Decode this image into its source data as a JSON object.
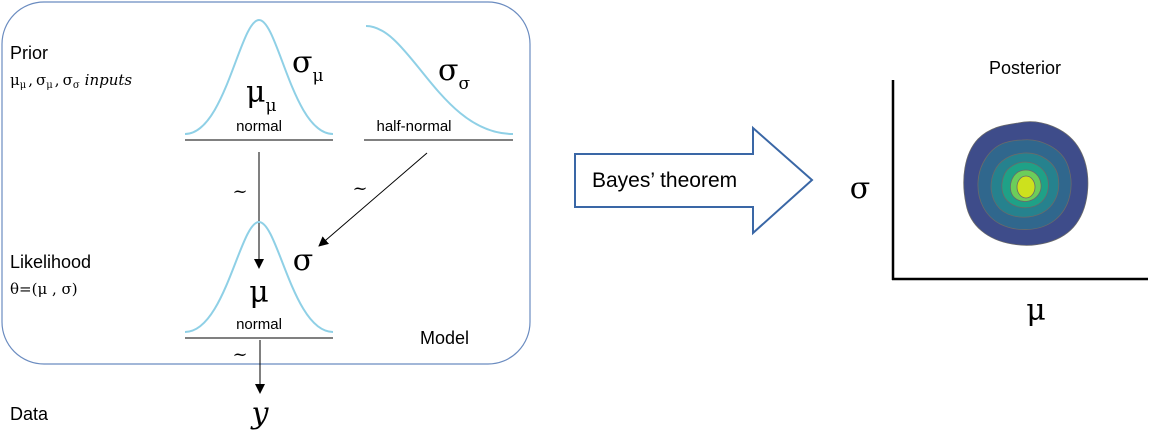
{
  "model": {
    "label": "Model",
    "prior": {
      "label": "Prior",
      "inputs": {
        "mu_sub": "μ",
        "sep1": ",",
        "sigma1": "σ",
        "sigma1_sub": "μ",
        "sep2": ",",
        "sigma2": "σ",
        "sigma2_sub": "σ",
        "inputs_word": "inputs"
      },
      "normal": {
        "dist_label": "normal",
        "mean_symbol": "μ",
        "mean_sub": "μ",
        "sd_symbol": "σ",
        "sd_sub": "μ"
      },
      "half_normal": {
        "dist_label": "half-normal",
        "symbol": "σ",
        "sub": "σ"
      }
    },
    "likelihood": {
      "label": "Likelihood",
      "theta_expr": "θ=(μ , σ)",
      "dist_label": "normal",
      "mean_symbol": "μ",
      "sd_symbol": "σ"
    },
    "tilde": "~",
    "data": {
      "label": "Data",
      "symbol": "y"
    }
  },
  "arrow": {
    "label": "Bayes’ theorem"
  },
  "posterior": {
    "title": "Posterior",
    "xlabel": "μ",
    "ylabel": "σ",
    "colors": [
      "#3e4c8a",
      "#30678d",
      "#26828e",
      "#1fa187",
      "#6ccd5a",
      "#cde11d"
    ]
  }
}
